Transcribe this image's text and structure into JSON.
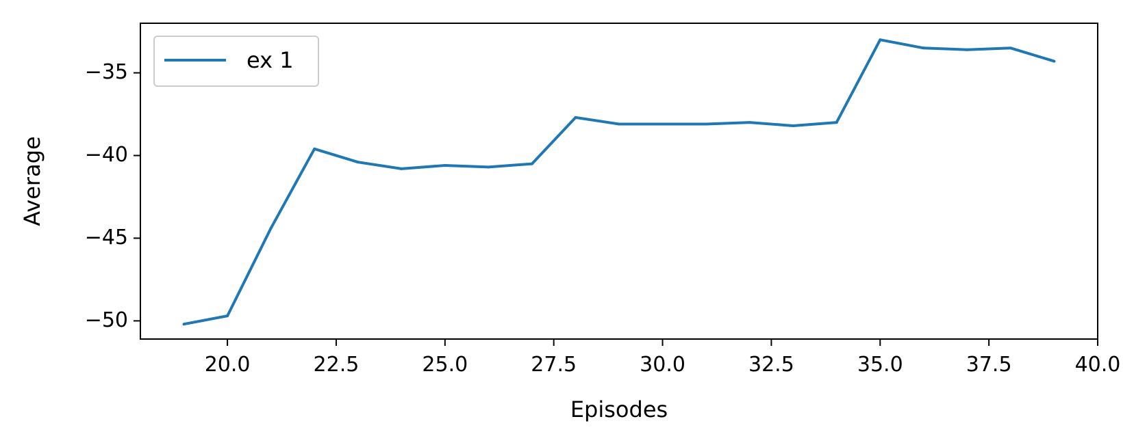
{
  "chart_data": {
    "type": "line",
    "title": "",
    "xlabel": "Episodes",
    "ylabel": "Average",
    "xlim": [
      18,
      40
    ],
    "ylim": [
      -51.1,
      -32
    ],
    "xticks": [
      20.0,
      22.5,
      25.0,
      27.5,
      30.0,
      32.5,
      35.0,
      37.5,
      40.0
    ],
    "xtick_labels": [
      "20.0",
      "22.5",
      "25.0",
      "27.5",
      "30.0",
      "32.5",
      "35.0",
      "37.5",
      "40.0"
    ],
    "yticks": [
      -50,
      -45,
      -40,
      -35
    ],
    "ytick_labels": [
      "−50",
      "−45",
      "−40",
      "−35"
    ],
    "grid": false,
    "legend_position": "top-left",
    "series": [
      {
        "name": "ex 1",
        "color": "#1f77b4",
        "x": [
          19,
          20,
          21,
          22,
          23,
          24,
          25,
          26,
          27,
          28,
          29,
          30,
          31,
          32,
          33,
          34,
          35,
          36,
          37,
          38,
          39
        ],
        "y": [
          -50.2,
          -49.7,
          -44.4,
          -39.6,
          -40.4,
          -40.8,
          -40.6,
          -40.7,
          -40.5,
          -37.7,
          -38.1,
          -38.1,
          -38.1,
          -38.0,
          -38.2,
          -38.0,
          -33.0,
          -33.5,
          -33.6,
          -33.5,
          -34.3
        ]
      }
    ]
  }
}
